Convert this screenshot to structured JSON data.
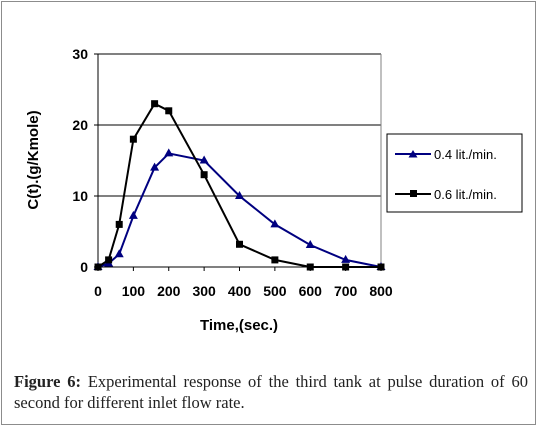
{
  "chart_data": {
    "type": "line",
    "xlabel": "Time,(sec.)",
    "ylabel": "C(t).(g/Kmole)",
    "xlim": [
      0,
      800
    ],
    "ylim": [
      0,
      30
    ],
    "x_ticks": [
      0,
      100,
      200,
      300,
      400,
      500,
      600,
      700,
      800
    ],
    "y_ticks": [
      0,
      10,
      20,
      30
    ],
    "x_tick_labels": [
      "0",
      "100",
      "200",
      "300",
      "400",
      "500",
      "600",
      "700",
      "800"
    ],
    "y_tick_labels": [
      "0",
      "10",
      "20",
      "30"
    ],
    "grid": "horizontal",
    "legend_position": "right",
    "series": [
      {
        "name": "0.4 lit./min.",
        "marker": "triangle",
        "color": "#000080",
        "x": [
          0,
          30,
          60,
          100,
          160,
          200,
          300,
          400,
          500,
          600,
          700,
          800
        ],
        "y": [
          0,
          0.5,
          1.8,
          7.2,
          14,
          16,
          15,
          10,
          6,
          3.1,
          1,
          0
        ]
      },
      {
        "name": "0.6 lit./min.",
        "marker": "square",
        "color": "#000000",
        "x": [
          0,
          30,
          60,
          100,
          160,
          200,
          300,
          400,
          500,
          600,
          700,
          800
        ],
        "y": [
          0,
          1,
          6,
          18,
          23,
          22,
          13,
          3.2,
          1,
          0,
          0,
          0
        ]
      }
    ]
  },
  "caption": {
    "label": "Figure 6:",
    "text": "Experimental response of the third tank at pulse duration of 60 second for different inlet flow rate."
  }
}
